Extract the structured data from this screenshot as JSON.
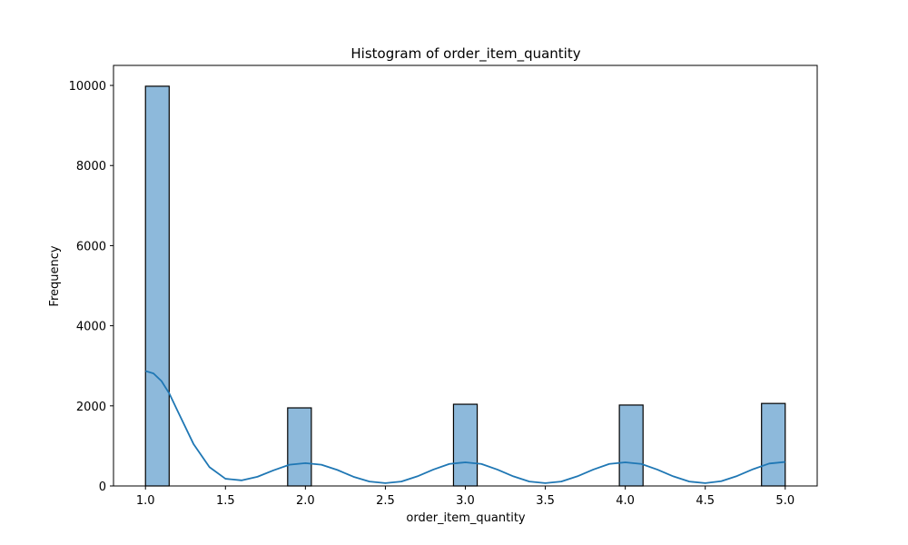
{
  "chart_data": {
    "type": "bar",
    "title": "Histogram of order_item_quantity",
    "xlabel": "order_item_quantity",
    "ylabel": "Frequency",
    "xlim": [
      0.8,
      5.2
    ],
    "ylim": [
      0,
      10500
    ],
    "xticks": [
      1.0,
      1.5,
      2.0,
      2.5,
      3.0,
      3.5,
      4.0,
      4.5,
      5.0
    ],
    "xtick_labels": [
      "1.0",
      "1.5",
      "2.0",
      "2.5",
      "3.0",
      "3.5",
      "4.0",
      "4.5",
      "5.0"
    ],
    "yticks": [
      0,
      2000,
      4000,
      6000,
      8000,
      10000
    ],
    "ytick_labels": [
      "0",
      "2000",
      "4000",
      "6000",
      "8000",
      "10000"
    ],
    "bin_width": 0.1481,
    "bins": [
      {
        "x_start": 1.0,
        "x_end": 1.1481,
        "count": 9980
      },
      {
        "x_start": 1.8889,
        "x_end": 2.037,
        "count": 1950
      },
      {
        "x_start": 2.9259,
        "x_end": 3.0741,
        "count": 2040
      },
      {
        "x_start": 3.963,
        "x_end": 4.1111,
        "count": 2020
      },
      {
        "x_start": 4.8519,
        "x_end": 5.0,
        "count": 2060
      }
    ],
    "kde": {
      "x": [
        1.0,
        1.05,
        1.1,
        1.15,
        1.2,
        1.3,
        1.4,
        1.5,
        1.6,
        1.7,
        1.8,
        1.9,
        2.0,
        2.1,
        2.2,
        2.3,
        2.4,
        2.5,
        2.6,
        2.7,
        2.8,
        2.9,
        3.0,
        3.1,
        3.2,
        3.3,
        3.4,
        3.5,
        3.6,
        3.7,
        3.8,
        3.9,
        4.0,
        4.1,
        4.2,
        4.3,
        4.4,
        4.5,
        4.6,
        4.7,
        4.8,
        4.9,
        5.0
      ],
      "y": [
        2870,
        2810,
        2620,
        2300,
        1880,
        1050,
        470,
        180,
        140,
        230,
        390,
        530,
        570,
        530,
        400,
        230,
        110,
        70,
        110,
        240,
        410,
        550,
        590,
        550,
        410,
        240,
        110,
        70,
        110,
        240,
        410,
        550,
        590,
        550,
        410,
        240,
        110,
        70,
        120,
        250,
        420,
        560,
        600
      ]
    },
    "colors": {
      "bar_fill": "#8db9db",
      "bar_edge": "#000000",
      "kde_line": "#1f77b4"
    },
    "grid": false,
    "legend": "none"
  }
}
